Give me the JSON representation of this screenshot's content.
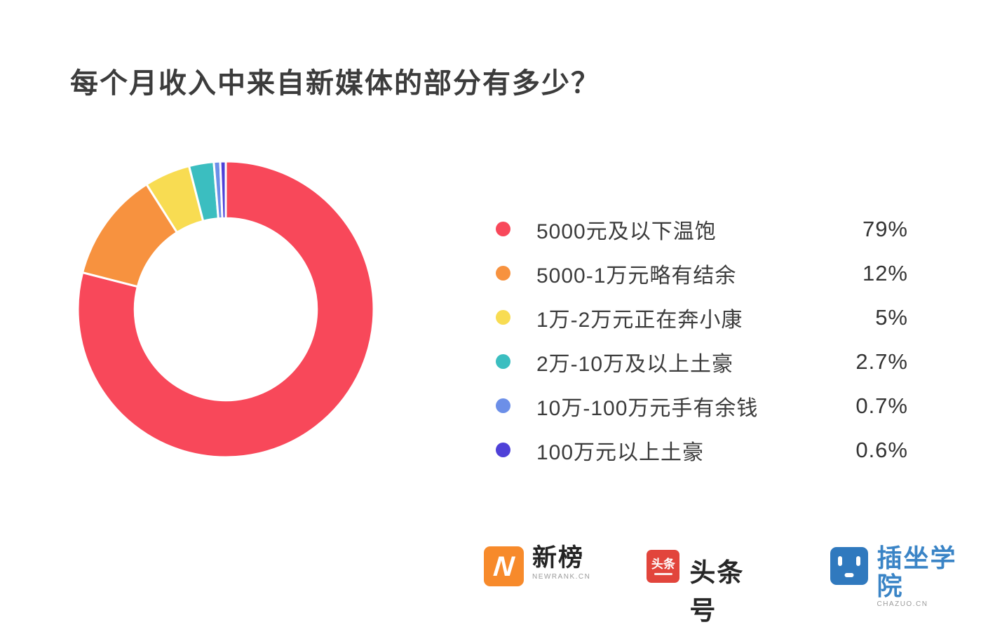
{
  "title": "每个月收入中来自新媒体的部分有多少？",
  "chart_data": {
    "type": "pie",
    "subtype": "donut",
    "title": "每个月收入中来自新媒体的部分有多少？",
    "categories": [
      "5000元及以下温饱",
      "5000-1万元略有结余",
      "1万-2万元正在奔小康",
      "2万-10万及以上土豪",
      "10万-100万元手有余钱",
      "100万元以上土豪"
    ],
    "values": [
      79,
      12,
      5,
      2.7,
      0.7,
      0.6
    ],
    "unit": "%",
    "colors": [
      "#F8485A",
      "#F7923F",
      "#F8DC52",
      "#3BBEC0",
      "#6C8FE8",
      "#4F41D8"
    ],
    "start_angle_deg": 0,
    "direction": "clockwise",
    "outer_radius_px": 211,
    "inner_radius_ratio": 0.615,
    "slice_separator_color": "#ffffff",
    "legend_position": "right",
    "grid": false
  },
  "legend": {
    "items": [
      {
        "label": "5000元及以下温饱",
        "percent_label": "79%",
        "color": "#F8485A"
      },
      {
        "label": "5000-1万元略有结余",
        "percent_label": "12%",
        "color": "#F7923F"
      },
      {
        "label": "1万-2万元正在奔小康",
        "percent_label": "5%",
        "color": "#F8DC52"
      },
      {
        "label": "2万-10万及以上土豪",
        "percent_label": "2.7%",
        "color": "#3BBEC0"
      },
      {
        "label": "10万-100万元手有余钱",
        "percent_label": "0.7%",
        "color": "#6C8FE8"
      },
      {
        "label": "100万元以上土豪",
        "percent_label": "0.6%",
        "color": "#4F41D8"
      }
    ]
  },
  "footer": {
    "logos": [
      {
        "name": "newrank",
        "icon_glyph": "N",
        "title": "新榜",
        "subtitle": "NEWRANK.CN",
        "badge_color": "#F78A2B",
        "title_color": "#242424"
      },
      {
        "name": "toutiao",
        "icon_glyph": "头条",
        "title": "头条号",
        "subtitle": "",
        "badge_color": "#E2453C",
        "title_color": "#272727"
      },
      {
        "name": "chazuo",
        "icon_glyph": "robot-face",
        "title": "插坐学院",
        "subtitle": "CHAZUO.CN",
        "badge_color": "#3079BE",
        "title_color": "#3A84C6"
      }
    ]
  }
}
